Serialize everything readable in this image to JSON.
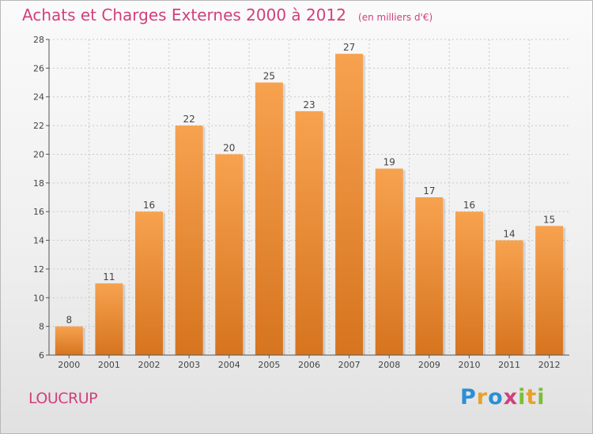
{
  "header": {
    "title": "Achats et Charges Externes 2000 à 2012",
    "subtitle": "(en milliers d'€)"
  },
  "footer": {
    "commune": "LOUCRUP",
    "logo_text": "Proxiti"
  },
  "colors": {
    "title": "#d23f7c",
    "bar_top": "#f7a24f",
    "bar_bottom": "#d6741f",
    "grid": "#c8c8c8",
    "axis": "#555555"
  },
  "chart_data": {
    "type": "bar",
    "categories": [
      "2000",
      "2001",
      "2002",
      "2003",
      "2004",
      "2005",
      "2006",
      "2007",
      "2008",
      "2009",
      "2010",
      "2011",
      "2012"
    ],
    "values": [
      8,
      11,
      16,
      22,
      20,
      25,
      23,
      27,
      19,
      17,
      16,
      14,
      15
    ],
    "title": "Achats et Charges Externes 2000 à 2012",
    "xlabel": "",
    "ylabel": "",
    "ylim": [
      6,
      28
    ],
    "yticks": [
      6,
      8,
      10,
      12,
      14,
      16,
      18,
      20,
      22,
      24,
      26,
      28
    ],
    "grid": true,
    "legend": "none"
  }
}
